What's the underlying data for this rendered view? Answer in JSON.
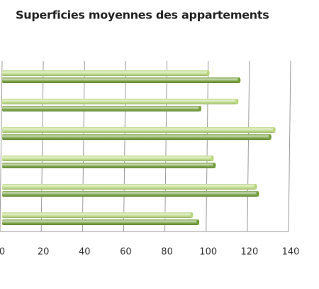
{
  "chart_data": {
    "type": "bar",
    "orientation": "horizontal",
    "title": "Superficies moyennes des appartements",
    "categories": [
      null,
      null,
      null,
      null,
      null,
      null
    ],
    "series": [
      {
        "color": "#b9d77f",
        "values": [
          100,
          114,
          132,
          102,
          123,
          92
        ]
      },
      {
        "color": "#739e3c",
        "values": [
          115,
          96,
          130,
          103,
          124,
          95
        ]
      }
    ],
    "xlim": [
      0,
      140
    ],
    "xticks": [
      0,
      20,
      40,
      60,
      80,
      100,
      120,
      140
    ],
    "grid": true
  }
}
